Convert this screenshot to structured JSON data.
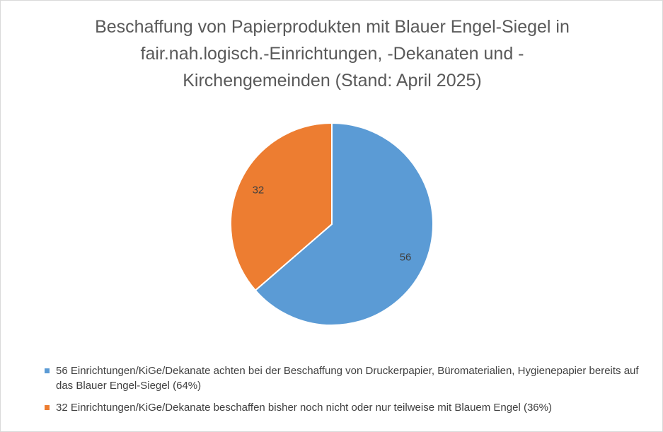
{
  "title_lines": [
    "Beschaffung von Papierprodukten mit Blauer Engel-Siegel in",
    "fair.nah.logisch.-Einrichtungen,  -Dekanaten und -",
    "Kirchengemeinden  (Stand: April 2025)"
  ],
  "chart_data": {
    "type": "pie",
    "title": "Beschaffung von Papierprodukten mit Blauer Engel-Siegel in fair.nah.logisch.-Einrichtungen,  -Dekanaten und -Kirchengemeinden  (Stand: April 2025)",
    "slices": [
      {
        "label": "56 Einrichtungen/KiGe/Dekanate achten bei der Beschaffung von Druckerpapier, Büromaterialien, Hygienepapier bereits auf das Blauer Engel-Siegel (64%)",
        "value": 56,
        "data_label": "56",
        "color": "#5b9bd5"
      },
      {
        "label": "32 Einrichtungen/KiGe/Dekanate beschaffen bisher noch nicht oder nur teilweise mit Blauem Engel (36%)",
        "value": 32,
        "data_label": "32",
        "color": "#ed7d31"
      }
    ],
    "legend_position": "bottom"
  }
}
